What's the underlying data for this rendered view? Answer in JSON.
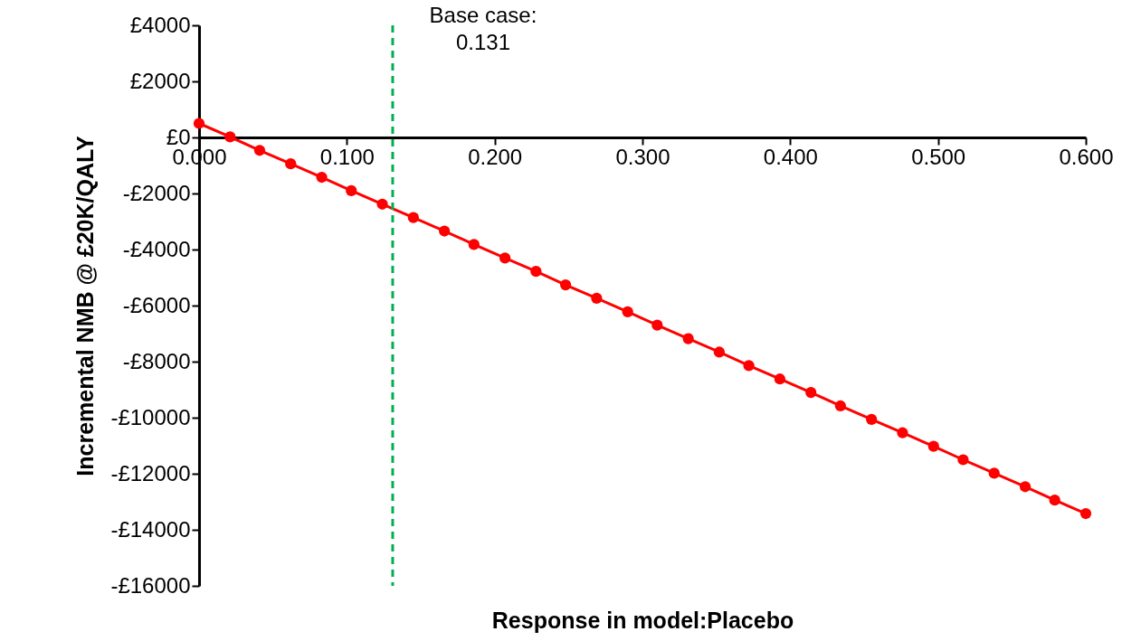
{
  "chart_data": {
    "type": "line",
    "xlabel": "Response in model:Placebo",
    "ylabel": "Incremental NMB @ £20K/QALY",
    "x": [
      0,
      0.021,
      0.041,
      0.062,
      0.083,
      0.103,
      0.124,
      0.145,
      0.166,
      0.186,
      0.207,
      0.228,
      0.248,
      0.269,
      0.29,
      0.31,
      0.331,
      0.352,
      0.372,
      0.393,
      0.414,
      0.434,
      0.455,
      0.476,
      0.497,
      0.517,
      0.538,
      0.559,
      0.579,
      0.6
    ],
    "series": [
      {
        "color": "#ff0000",
        "values": [
          500,
          20,
          -460,
          -940,
          -1420,
          -1900,
          -2380,
          -2860,
          -3340,
          -3820,
          -4300,
          -4780,
          -5260,
          -5740,
          -6220,
          -6700,
          -7180,
          -7660,
          -8140,
          -8620,
          -9100,
          -9580,
          -10060,
          -10540,
          -11020,
          -11500,
          -11980,
          -12460,
          -12940,
          -13420
        ]
      }
    ],
    "xlim": [
      0,
      0.6
    ],
    "xticks": [
      {
        "value": 0,
        "label": "0.000"
      },
      {
        "value": 0.1,
        "label": "0.100"
      },
      {
        "value": 0.2,
        "label": "0.200"
      },
      {
        "value": 0.3,
        "label": "0.300"
      },
      {
        "value": 0.4,
        "label": "0.400"
      },
      {
        "value": 0.5,
        "label": "0.500"
      },
      {
        "value": 0.6,
        "label": "0.600"
      }
    ],
    "ylim": [
      -16000,
      4000
    ],
    "yticks": [
      {
        "value": 4000,
        "label": "£4000"
      },
      {
        "value": 2000,
        "label": "£2000"
      },
      {
        "value": 0,
        "label": "£0"
      },
      {
        "value": -2000,
        "label": "-£2000"
      },
      {
        "value": -4000,
        "label": "-£4000"
      },
      {
        "value": -6000,
        "label": "-£6000"
      },
      {
        "value": -8000,
        "label": "-£8000"
      },
      {
        "value": -10000,
        "label": "-£10000"
      },
      {
        "value": -12000,
        "label": "-£12000"
      },
      {
        "value": -14000,
        "label": "-£14000"
      },
      {
        "value": -16000,
        "label": "-£16000"
      }
    ],
    "ref_lines": [
      {
        "axis": "x",
        "value": 0.131,
        "label": "Base case:\n0.131",
        "color": "#00b050",
        "line_style": "dashed"
      }
    ],
    "marker": "circle",
    "line_style": "solid"
  }
}
